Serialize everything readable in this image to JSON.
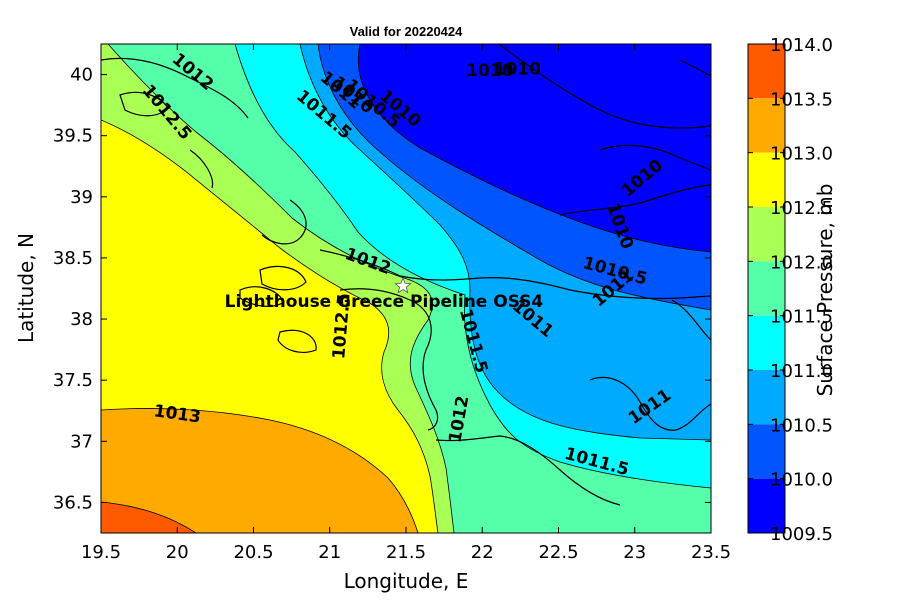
{
  "chart_data": {
    "type": "contour-map",
    "title": "Valid for 20220424",
    "xlabel": "Longitude, E",
    "ylabel": "Latitude, N",
    "xlim": [
      19.5,
      23.5
    ],
    "ylim": [
      36.25,
      40.25
    ],
    "xticks": [
      "19.5",
      "20",
      "20.5",
      "21",
      "21.5",
      "22",
      "22.5",
      "23",
      "23.5"
    ],
    "yticks": [
      "36.5",
      "37",
      "37.5",
      "38",
      "38.5",
      "39",
      "39.5",
      "40"
    ],
    "colorbar": {
      "label": "Surface Pressure, mb",
      "ticks": [
        "1014.0",
        "1013.5",
        "1013.0",
        "1012.5",
        "1012.0",
        "1011.5",
        "1011.0",
        "1010.5",
        "1010.0",
        "1009.5"
      ],
      "levels": [
        {
          "from": 1013.5,
          "to": 1014.0,
          "color": "#ff5a00"
        },
        {
          "from": 1013.0,
          "to": 1013.5,
          "color": "#ffaa00"
        },
        {
          "from": 1012.5,
          "to": 1013.0,
          "color": "#ffff00"
        },
        {
          "from": 1012.0,
          "to": 1012.5,
          "color": "#aaff55"
        },
        {
          "from": 1011.5,
          "to": 1012.0,
          "color": "#55ffaa"
        },
        {
          "from": 1011.0,
          "to": 1011.5,
          "color": "#00ffff"
        },
        {
          "from": 1010.5,
          "to": 1011.0,
          "color": "#00aaff"
        },
        {
          "from": 1010.0,
          "to": 1010.5,
          "color": "#0055ff"
        },
        {
          "from": 1009.5,
          "to": 1010.0,
          "color": "#0000ff"
        }
      ]
    },
    "contour_labels": [
      {
        "text": "1010",
        "lon": 22.05,
        "lat": 40.03,
        "angle": 0
      },
      {
        "text": "1010",
        "lon": 22.23,
        "lat": 40.04,
        "angle": 0
      },
      {
        "text": "1010",
        "lon": 21.15,
        "lat": 39.83,
        "angle": 40
      },
      {
        "text": "1010",
        "lon": 21.46,
        "lat": 39.72,
        "angle": 40
      },
      {
        "text": "1010.5",
        "lon": 21.28,
        "lat": 39.76,
        "angle": 40
      },
      {
        "text": "1011",
        "lon": 21.07,
        "lat": 39.87,
        "angle": 40
      },
      {
        "text": "1011.5",
        "lon": 20.96,
        "lat": 39.67,
        "angle": 40
      },
      {
        "text": "1012",
        "lon": 20.1,
        "lat": 40.02,
        "angle": 40
      },
      {
        "text": "1012.5",
        "lon": 19.93,
        "lat": 39.69,
        "angle": 50
      },
      {
        "text": "1012",
        "lon": 21.25,
        "lat": 38.47,
        "angle": 20
      },
      {
        "text": "1012.5",
        "lon": 21.08,
        "lat": 37.94,
        "angle": -85
      },
      {
        "text": "1013",
        "lon": 20.0,
        "lat": 37.22,
        "angle": 8
      },
      {
        "text": "1012",
        "lon": 21.85,
        "lat": 37.18,
        "angle": -80
      },
      {
        "text": "1011.5",
        "lon": 21.94,
        "lat": 37.82,
        "angle": 75
      },
      {
        "text": "1011",
        "lon": 22.33,
        "lat": 38.0,
        "angle": 40
      },
      {
        "text": "1010.5",
        "lon": 22.87,
        "lat": 38.39,
        "angle": 15
      },
      {
        "text": "1011",
        "lon": 22.86,
        "lat": 38.25,
        "angle": -40
      },
      {
        "text": "1010",
        "lon": 22.9,
        "lat": 38.76,
        "angle": 70
      },
      {
        "text": "1010",
        "lon": 23.05,
        "lat": 39.15,
        "angle": -40
      },
      {
        "text": "1011",
        "lon": 23.1,
        "lat": 37.28,
        "angle": -35
      },
      {
        "text": "1011.5",
        "lon": 22.75,
        "lat": 36.83,
        "angle": 15
      }
    ],
    "station": {
      "name": "Lighthouse Greece Pipeline OSS4",
      "lon": 21.48,
      "lat": 38.27
    }
  }
}
